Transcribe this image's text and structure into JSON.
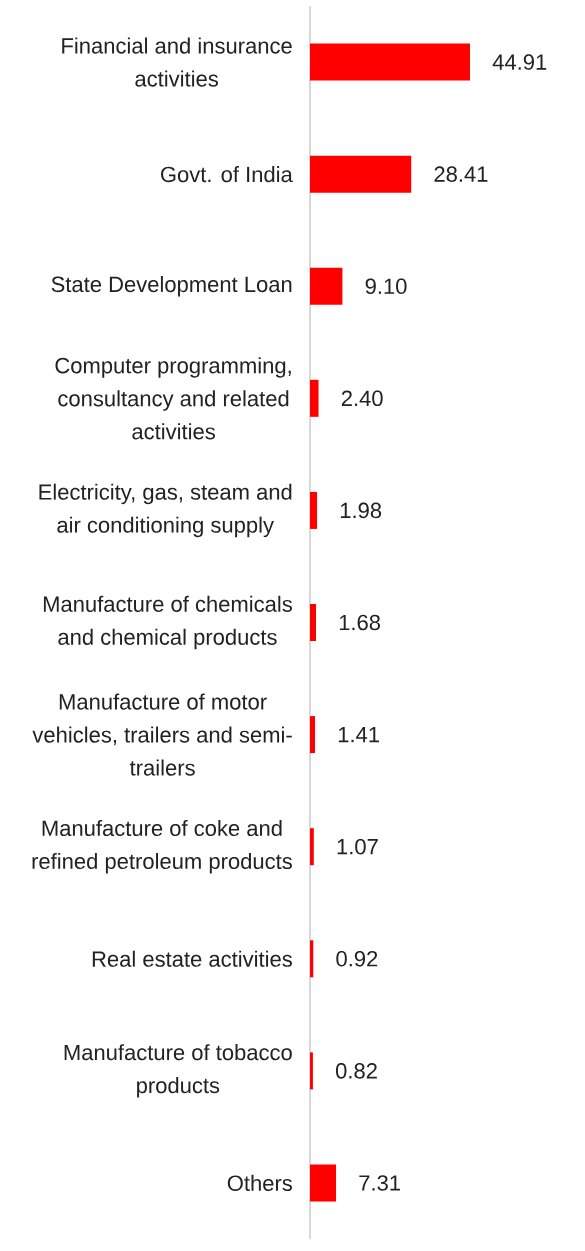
{
  "chart_data": {
    "type": "bar",
    "orientation": "horizontal",
    "categories": [
      "Financial and insurance activities",
      "Govt. of India",
      "State Development Loan",
      "Computer programming, consultancy and related activities",
      "Electricity, gas, steam and air conditioning supply",
      "Manufacture of chemicals and chemical products",
      "Manufacture of motor vehicles, trailers and semi-trailers",
      "Manufacture of coke and refined petroleum products",
      "Real estate activities",
      "Manufacture of tobacco products",
      "Others"
    ],
    "values": [
      44.91,
      28.41,
      9.1,
      2.4,
      1.98,
      1.68,
      1.41,
      1.07,
      0.92,
      0.82,
      7.31
    ],
    "value_labels": [
      "44.91",
      "28.41",
      "9.10",
      "2.40",
      "1.98",
      "1.68",
      "1.41",
      "1.07",
      "0.92",
      "0.82",
      "7.31"
    ],
    "color": "#ff0000",
    "tick_labels": "y"
  }
}
